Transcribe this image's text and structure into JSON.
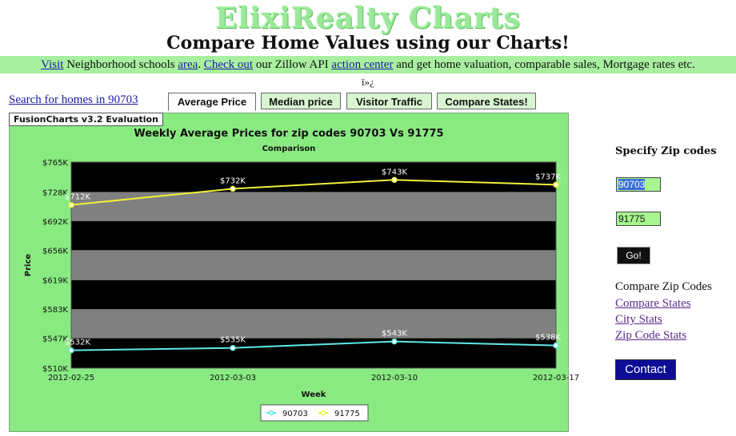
{
  "header": {
    "title": "ElixiRealty Charts",
    "subtitle": "Compare Home Values using our Charts!"
  },
  "info_bar": {
    "link1": "Visit",
    "text1": " Neighborhood schools ",
    "link2": "area",
    "text2": ". ",
    "link3": "Check out",
    "text3": " our Zillow API ",
    "link4": "action center",
    "text4": " and get home valuation, comparable sales, Mortgage rates etc."
  },
  "odd_glyph": "ï»¿",
  "search_link": "Search for homes in 90703",
  "tabs": [
    {
      "label": "Average Price",
      "active": true
    },
    {
      "label": "Median price",
      "active": false
    },
    {
      "label": "Visitor Traffic",
      "active": false
    },
    {
      "label": "Compare States!",
      "active": false
    }
  ],
  "chart_panel": {
    "eval_label": "FusionCharts v3.2 Evaluation"
  },
  "chart_data": {
    "type": "line",
    "title": "Weekly Average Prices for zip codes 90703 Vs 91775",
    "subtitle": "Comparison",
    "xlabel": "Week",
    "ylabel": "Price",
    "categories": [
      "2012-02-25",
      "2012-03-03",
      "2012-03-10",
      "2012-03-17"
    ],
    "ylim": [
      510,
      765
    ],
    "yticks": [
      510,
      547,
      583,
      619,
      656,
      692,
      728,
      765
    ],
    "ytick_labels": [
      "$510K",
      "$547K",
      "$583K",
      "$619K",
      "$656K",
      "$692K",
      "$728K",
      "$765K"
    ],
    "series": [
      {
        "name": "90703",
        "values": [
          532,
          535,
          543,
          538
        ],
        "labels": [
          "$532K",
          "$535K",
          "$543K",
          "$538K"
        ],
        "color": "#5fe8e8"
      },
      {
        "name": "91775",
        "values": [
          712,
          732,
          743,
          737
        ],
        "labels": [
          "$712K",
          "$732K",
          "$743K",
          "$737K"
        ],
        "color": "#f0f03a"
      }
    ],
    "legend_position": "bottom",
    "band_colors": [
      "#000000",
      "#808080"
    ]
  },
  "sidebar": {
    "heading": "Specify Zip codes",
    "zip1_value": "90703",
    "zip2_value": "91775",
    "go_label": "Go!",
    "compare_heading": "Compare Zip Codes",
    "links": [
      "Compare States",
      "City Stats",
      "Zip Code Stats"
    ],
    "contact_label": "Contact"
  }
}
